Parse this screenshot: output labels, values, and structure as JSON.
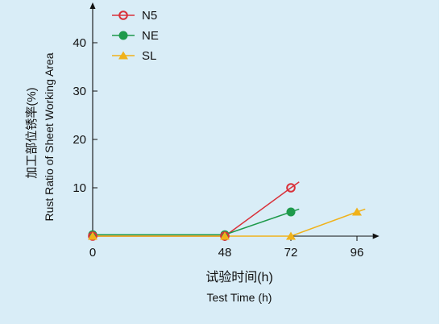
{
  "page": {
    "background": "#ffffff",
    "panel_color": "#d9edf7"
  },
  "chart_data": {
    "type": "line",
    "xlabel_cn": "试验时间(h)",
    "xlabel_en": "Test Time (h)",
    "ylabel_cn": "加工部位锈率(%)",
    "ylabel_en": "Rust Ratio of Sheet Working Area",
    "x_ticks": [
      0,
      48,
      72,
      96
    ],
    "y_ticks": [
      10,
      20,
      30,
      40
    ],
    "xlim": [
      0,
      100
    ],
    "ylim": [
      0,
      45
    ],
    "grid": false,
    "legend_position": "top-left",
    "series": [
      {
        "name": "N5",
        "color": "#d9313a",
        "marker": "open-circle",
        "x": [
          0,
          48,
          72
        ],
        "y": [
          0,
          0,
          10
        ],
        "trend_end": [
          75,
          11.2
        ]
      },
      {
        "name": "NE",
        "color": "#1e9a4b",
        "marker": "filled-circle",
        "x": [
          0,
          48,
          72
        ],
        "y": [
          0.3,
          0.3,
          5
        ],
        "trend_end": [
          75,
          5.6
        ]
      },
      {
        "name": "SL",
        "color": "#f0b21b",
        "marker": "filled-triangle",
        "x": [
          0,
          48,
          72,
          96
        ],
        "y": [
          0,
          0,
          0,
          5
        ],
        "trend_end": [
          99,
          5.6
        ]
      }
    ]
  }
}
